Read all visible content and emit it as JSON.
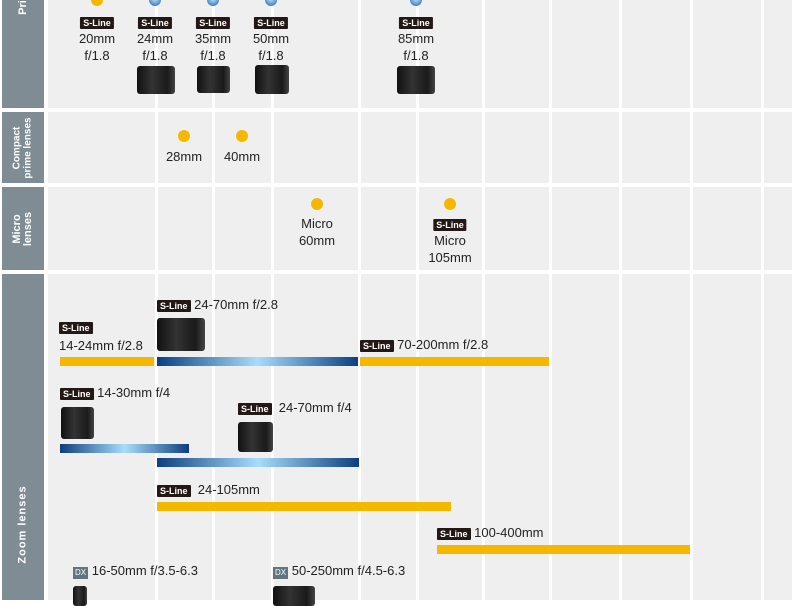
{
  "sections": [
    {
      "label": "Prime lenses",
      "visible_label": "Pri"
    },
    {
      "label": "Compact prime lenses",
      "line1": "Compact",
      "line2": "prime lenses"
    },
    {
      "label": "Micro lenses",
      "line1": "Micro",
      "line2": "lenses"
    },
    {
      "label": "Zoom lenses"
    }
  ],
  "badge": "S-Line",
  "dx_badge": "DX",
  "prime": [
    {
      "line1": "20mm",
      "line2": "f/1.8",
      "dot": "yellow"
    },
    {
      "line1": "24mm",
      "line2": "f/1.8",
      "dot": "blue"
    },
    {
      "line1": "35mm",
      "line2": "f/1.8",
      "dot": "blue"
    },
    {
      "line1": "50mm",
      "line2": "f/1.8",
      "dot": "blue"
    },
    {
      "line1": "85mm",
      "line2": "f/1.8",
      "dot": "blue"
    }
  ],
  "compact": [
    {
      "label": "28mm"
    },
    {
      "label": "40mm"
    }
  ],
  "micro": [
    {
      "line1": "Micro",
      "line2": "60mm"
    },
    {
      "line1": "Micro",
      "line2": "105mm"
    }
  ],
  "zoom": [
    {
      "label": "14-24mm f/2.8"
    },
    {
      "label": "24-70mm f/2.8"
    },
    {
      "label": "70-200mm f/2.8"
    },
    {
      "label": "14-30mm f/4"
    },
    {
      "label": "24-70mm f/4"
    },
    {
      "label": "24-105mm"
    },
    {
      "label": "100-400mm"
    },
    {
      "label": "16-50mm f/3.5-6.3"
    },
    {
      "label": "50-250mm f/4.5-6.3"
    }
  ],
  "colors": {
    "yellow": "#f5b800",
    "blue": "#0b3f80",
    "sidebar": "#7f8c94",
    "panel": "#efefef"
  }
}
